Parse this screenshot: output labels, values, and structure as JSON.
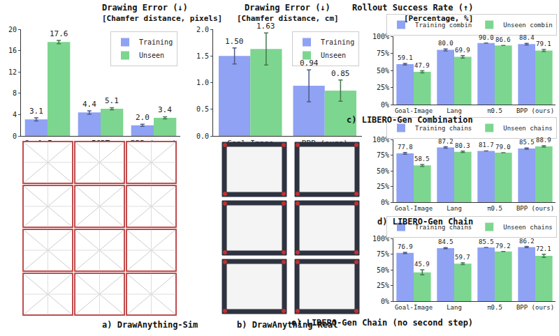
{
  "chart_data": [
    {
      "type": "bar",
      "title": "Drawing Error (↓)",
      "subtitle": "[Chamfer distance, pixels]",
      "caption": "a) DrawAnything-Sim",
      "categories": [
        "Goal-Image",
        "ICRT",
        "BPP (ours)"
      ],
      "series": [
        {
          "name": "Training",
          "color": "#8fa2f3",
          "values": [
            3.1,
            4.4,
            2.0
          ],
          "value_labels": [
            "3.1",
            "4.4",
            "2.0"
          ],
          "errors": [
            0.3,
            0.3,
            0.2
          ]
        },
        {
          "name": "Unseen",
          "color": "#7dd68f",
          "values": [
            17.6,
            5.1,
            3.4
          ],
          "value_labels": [
            "17.6",
            "5.1",
            "3.4"
          ],
          "errors": [
            0.3,
            0.2,
            0.2
          ]
        }
      ],
      "ylim": [
        0,
        20
      ],
      "yticks": [
        0,
        4,
        8,
        12,
        16,
        20
      ],
      "grid": false,
      "legend": "upper right",
      "data_labels": true
    },
    {
      "type": "bar",
      "title": "Drawing Error (↓)",
      "subtitle": "[Chamfer distance, cm]",
      "caption": "b) DrawAnything-Real",
      "categories": [
        "Goal-Image",
        "BPP (ours)"
      ],
      "series": [
        {
          "name": "Training",
          "color": "#8fa2f3",
          "values": [
            1.5,
            0.94
          ],
          "value_labels": [
            "1.50",
            "0.94"
          ],
          "errors": [
            0.15,
            0.3
          ]
        },
        {
          "name": "Unseen",
          "color": "#7dd68f",
          "values": [
            1.63,
            0.85
          ],
          "value_labels": [
            "1.63",
            "0.85"
          ],
          "errors": [
            0.3,
            0.2
          ]
        }
      ],
      "ylim": [
        0,
        2.0
      ],
      "yticks": [
        {
          "value": 0,
          "label": "0.0"
        },
        0.5,
        {
          "value": 1.0,
          "label": "1.0"
        },
        1.5,
        {
          "value": 2.0,
          "label": "2.0"
        }
      ],
      "grid": false,
      "legend": "upper right",
      "data_labels": true
    },
    {
      "type": "bar",
      "title": "Rollout Success Rate (↑)",
      "subtitle": "[Percentage, %]",
      "caption": "c) LIBERO-Gen Combination",
      "categories": [
        "Goal-Image",
        "Lang",
        "π0.5",
        "BPP (ours)"
      ],
      "series": [
        {
          "name": "Training combin",
          "color": "#8fa2f3",
          "values": [
            59.1,
            80.0,
            90.0,
            88.4
          ],
          "value_labels": [
            "59.1",
            "80.0",
            "90.0",
            "88.4"
          ],
          "errors": [
            1.2,
            1.5,
            null,
            1.2
          ]
        },
        {
          "name": "Unseen combin",
          "color": "#7dd68f",
          "values": [
            47.9,
            69.9,
            86.6,
            79.1
          ],
          "value_labels": [
            "47.9",
            "69.9",
            "86.6",
            "79.1"
          ],
          "errors": [
            1.5,
            1.8,
            null,
            1.5
          ]
        }
      ],
      "ylim": [
        0,
        100
      ],
      "yticks": [
        {
          "value": 0,
          "label": "0%"
        },
        {
          "value": 25,
          "label": "25%"
        },
        {
          "value": 50,
          "label": "50%"
        },
        {
          "value": 75,
          "label": "75%"
        },
        {
          "value": 100,
          "label": "100%"
        }
      ],
      "grid": false,
      "legend": "top",
      "data_labels": true
    },
    {
      "type": "bar",
      "caption": "d) LIBERO-Gen Chain",
      "categories": [
        "Goal-Image",
        "Lang",
        "π0.5",
        "BPP (ours)"
      ],
      "series": [
        {
          "name": "Training chains",
          "color": "#8fa2f3",
          "values": [
            77.8,
            87.2,
            81.7,
            85.5
          ],
          "value_labels": [
            "77.8",
            "87.2",
            "81.7",
            "85.5"
          ],
          "errors": [
            1.5,
            1.0,
            null,
            1.0
          ]
        },
        {
          "name": "Unseen chains",
          "color": "#7dd68f",
          "values": [
            58.5,
            80.3,
            79.0,
            88.9
          ],
          "value_labels": [
            "58.5",
            "80.3",
            "79.0",
            "88.9"
          ],
          "errors": [
            1.5,
            1.0,
            null,
            1.0
          ]
        }
      ],
      "ylim": [
        0,
        100
      ],
      "yticks": [
        {
          "value": 0,
          "label": "0%"
        },
        {
          "value": 25,
          "label": "25%"
        },
        {
          "value": 50,
          "label": "50%"
        },
        {
          "value": 75,
          "label": "75%"
        },
        {
          "value": 100,
          "label": "100%"
        }
      ],
      "grid": false,
      "legend": "top",
      "data_labels": true
    },
    {
      "type": "bar",
      "caption": "e) LIBERO-Gen Chain (no second step)",
      "categories": [
        "Goal-Image",
        "Lang",
        "π0.5",
        "BPP (ours)"
      ],
      "series": [
        {
          "name": "Training chains",
          "color": "#8fa2f3",
          "values": [
            76.9,
            84.5,
            85.5,
            86.2
          ],
          "value_labels": [
            "76.9",
            "84.5",
            "85.5",
            "86.2"
          ],
          "errors": [
            1.0,
            0.8,
            null,
            1.0
          ]
        },
        {
          "name": "Unseen chains",
          "color": "#7dd68f",
          "values": [
            45.9,
            59.7,
            79.2,
            72.1
          ],
          "value_labels": [
            "45.9",
            "59.7",
            "79.2",
            "72.1"
          ],
          "errors": [
            4.0,
            1.5,
            null,
            2.5
          ]
        }
      ],
      "ylim": [
        0,
        100
      ],
      "yticks": [
        {
          "value": 0,
          "label": "0%"
        },
        {
          "value": 25,
          "label": "25%"
        },
        {
          "value": 50,
          "label": "50%"
        },
        {
          "value": 75,
          "label": "75%"
        },
        {
          "value": 100,
          "label": "100%"
        }
      ],
      "grid": false,
      "legend": "top",
      "data_labels": true
    }
  ]
}
